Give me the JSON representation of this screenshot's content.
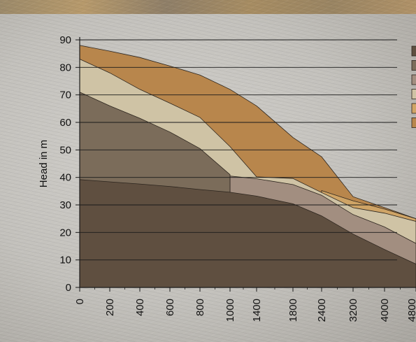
{
  "chart_data": {
    "type": "area",
    "title": "",
    "xlabel": "",
    "ylabel": "Head in m",
    "ylim": [
      0,
      90
    ],
    "yticks": [
      0,
      10,
      20,
      30,
      40,
      50,
      60,
      70,
      80,
      90
    ],
    "categories": [
      "0",
      "200",
      "400",
      "600",
      "800",
      "1000",
      "1400",
      "1800",
      "2400",
      "3200",
      "4000",
      "4800"
    ],
    "grid": "horizontal",
    "legend_position": "right",
    "colors": [
      "#5f4f40",
      "#7b6c5a",
      "#a28e80",
      "#cfc3a5",
      "#cfa466",
      "#b8864c"
    ],
    "series": [
      {
        "values": [
          39.2,
          38.4,
          37.6,
          36.7,
          35.6,
          34.6,
          33.2,
          30.4,
          26.0,
          19.4,
          13.8,
          8.5
        ]
      },
      {
        "values": [
          71.0,
          66.0,
          61.5,
          56.5,
          50.5,
          41.0,
          null,
          null,
          null,
          null,
          null,
          null
        ]
      },
      {
        "values": [
          null,
          null,
          null,
          null,
          null,
          40.5,
          39.5,
          37.4,
          33.5,
          26.5,
          22.0,
          16.0
        ]
      },
      {
        "values": [
          83.0,
          78.0,
          72.0,
          67.0,
          61.8,
          51.2,
          40.2,
          39.6,
          34.5,
          29.0,
          27.0,
          24.0
        ]
      },
      {
        "values": [
          null,
          null,
          null,
          null,
          null,
          null,
          null,
          null,
          35.2,
          31.5,
          28.5,
          25.0
        ]
      },
      {
        "values": [
          88.0,
          85.9,
          83.6,
          80.5,
          77.2,
          72.0,
          66.0,
          54.5,
          47.5,
          33.0,
          29.0,
          25.0
        ]
      }
    ]
  }
}
